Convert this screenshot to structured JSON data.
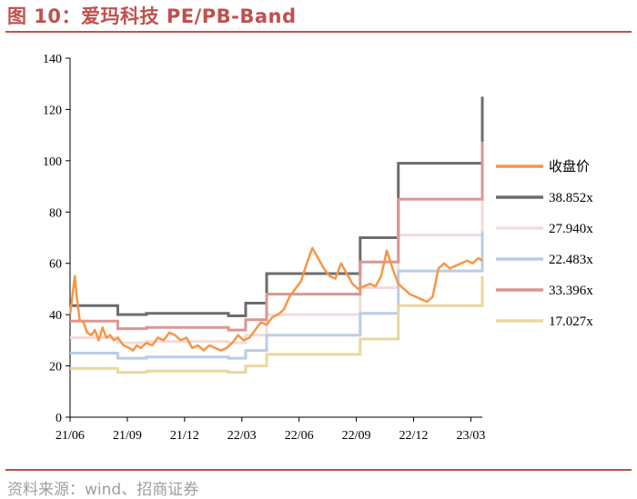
{
  "title": "图 10：爱玛科技 PE/PB-Band",
  "source": "资料来源：wind、招商证券",
  "colors": {
    "price": "#f79646",
    "band1": "#6d6d6d",
    "band2": "#f2dcdb",
    "band3": "#b9cde5",
    "band4": "#d99694",
    "band5": "#ead7a0",
    "accent": "#c0504d"
  },
  "chart_data": {
    "type": "line",
    "ylim": [
      0,
      140
    ],
    "yticks": [
      "0",
      "20",
      "40",
      "60",
      "80",
      "100",
      "120",
      "140"
    ],
    "xticks": [
      "21/06",
      "21/09",
      "21/12",
      "22/03",
      "22/06",
      "22/09",
      "22/12",
      "23/03"
    ],
    "legend_position": "right",
    "band_steps_months": [
      0,
      2.5,
      4,
      8.3,
      9.2,
      10.3,
      15.2,
      17.2,
      21.3,
      21.6
    ],
    "series": [
      {
        "name": "收盘价",
        "x": [
          0,
          0.1,
          0.25,
          0.35,
          0.5,
          0.7,
          0.9,
          1.1,
          1.3,
          1.5,
          1.7,
          1.9,
          2.1,
          2.3,
          2.5,
          2.8,
          3.1,
          3.3,
          3.5,
          3.7,
          4.0,
          4.3,
          4.6,
          4.9,
          5.2,
          5.5,
          5.8,
          6.1,
          6.4,
          6.7,
          7.0,
          7.3,
          7.6,
          7.9,
          8.2,
          8.5,
          8.8,
          9.1,
          9.4,
          9.7,
          10.0,
          10.3,
          10.6,
          10.9,
          11.2,
          11.5,
          11.8,
          12.1,
          12.4,
          12.7,
          13.0,
          13.3,
          13.6,
          13.9,
          14.2,
          14.5,
          14.8,
          15.1,
          15.4,
          15.7,
          16.0,
          16.3,
          16.6,
          16.9,
          17.2,
          17.5,
          17.8,
          18.1,
          18.4,
          18.7,
          19.0,
          19.3,
          19.6,
          19.9,
          20.2,
          20.5,
          20.8,
          21.1,
          21.4,
          21.6
        ],
        "values": [
          40,
          46,
          55,
          47,
          38,
          37,
          33,
          32,
          34,
          30,
          35,
          31,
          32,
          30,
          31,
          28,
          27,
          26,
          28,
          27,
          29,
          28,
          31,
          30,
          33,
          32,
          30,
          31,
          27,
          28,
          26,
          28,
          27,
          26,
          27,
          29,
          32,
          30,
          31,
          34,
          37,
          36,
          39,
          40,
          42,
          47,
          50,
          53,
          60,
          66,
          62,
          58,
          55,
          54,
          60,
          56,
          52,
          50,
          51,
          52,
          51,
          55,
          65,
          58,
          52,
          50,
          48,
          47,
          46,
          45,
          47,
          58,
          60,
          58,
          59,
          60,
          61,
          60,
          62,
          61
        ]
      },
      {
        "name": "38.852x",
        "values": [
          43.5,
          40,
          40.5,
          39.5,
          44.5,
          56,
          70,
          99,
          99,
          125
        ]
      },
      {
        "name": "27.940x",
        "values": [
          31,
          29,
          29.5,
          29,
          32,
          40,
          50.5,
          71,
          71,
          90
        ]
      },
      {
        "name": "22.483x",
        "values": [
          25,
          23,
          23.5,
          23,
          26,
          32,
          40.5,
          57,
          57,
          72.5
        ]
      },
      {
        "name": "33.396x",
        "values": [
          37.5,
          34.5,
          35,
          34,
          38,
          48,
          60.5,
          85,
          85,
          107.5
        ]
      },
      {
        "name": "17.027x",
        "values": [
          19,
          17.5,
          18,
          17.5,
          20,
          24.5,
          30.5,
          43.5,
          43.5,
          55
        ]
      }
    ]
  }
}
